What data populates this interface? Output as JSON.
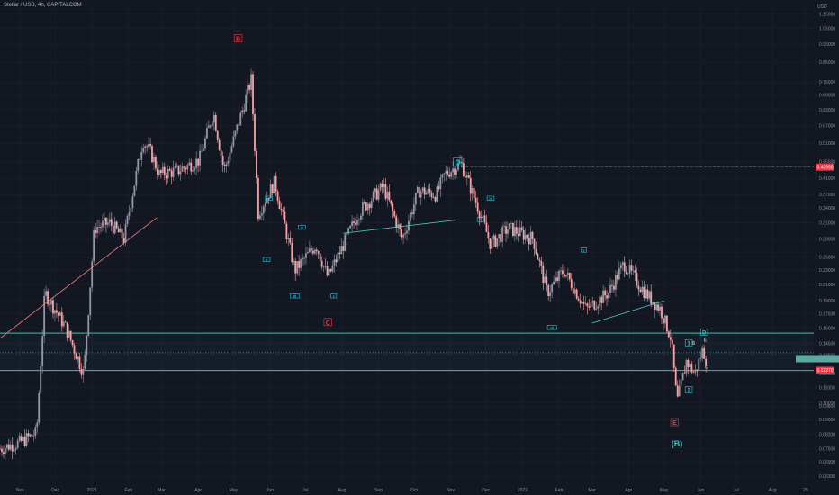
{
  "header": {
    "symbol_line": "Stellar / USD, 4h, CAPITALCOM"
  },
  "price_axis": {
    "currency": "USD",
    "labels": [
      "1.15000",
      "1.05000",
      "0.95000",
      "0.85000",
      "0.75000",
      "0.69000",
      "0.63000",
      "0.57000",
      "0.51000",
      "0.45500",
      "0.41000",
      "0.37000",
      "0.34000",
      "0.31000",
      "0.28000",
      "0.25000",
      "0.23000",
      "0.21000",
      "0.19000",
      "0.17500",
      "0.16000",
      "0.14500",
      "0.13500",
      "0.12000",
      "0.11000",
      "0.10000",
      "0.09800",
      "0.09000",
      "0.08200",
      "0.07500",
      "0.06900",
      "0.06300"
    ],
    "badges": [
      {
        "text": "0.43950",
        "color": "#f23645"
      },
      {
        "text": "0.12270",
        "color": "#f23645"
      },
      {
        "text": "",
        "color": "#5fa6a1"
      }
    ]
  },
  "time_axis": {
    "labels": [
      "Nov",
      "Dec",
      "2021",
      "Feb",
      "Mar",
      "Apr",
      "May",
      "Jun",
      "Jul",
      "Aug",
      "Sep",
      "Oct",
      "Nov",
      "Dec",
      "2022",
      "Feb",
      "Mar",
      "Apr",
      "May",
      "Jun",
      "Jul",
      "Aug",
      "29"
    ]
  },
  "wave_labels": [
    {
      "text": "B",
      "color": "#f23645",
      "boxed": true
    },
    {
      "text": "C",
      "color": "#f23645",
      "boxed": true
    },
    {
      "text": "D",
      "color": "#26c6da",
      "boxed": true
    },
    {
      "text": "E",
      "color": "#f23645",
      "boxed": true
    },
    {
      "text": "(B)",
      "color": "#26c6da",
      "boxed": false
    },
    {
      "text": "1",
      "color": "#26c6da",
      "boxed": true
    },
    {
      "text": "2",
      "color": "#26c6da",
      "boxed": true
    },
    {
      "text": "D",
      "color": "#26c6da",
      "boxed": true
    },
    {
      "text": "C",
      "color": "#b2b5be",
      "boxed": false
    },
    {
      "text": "B",
      "color": "#b2b5be",
      "boxed": false
    },
    {
      "text": "E",
      "color": "#b2b5be",
      "boxed": false
    },
    {
      "text": "ii",
      "color": "#26c6da",
      "boxed": true
    },
    {
      "text": "iv",
      "color": "#26c6da",
      "boxed": true
    },
    {
      "text": "iii",
      "color": "#26c6da",
      "boxed": true
    },
    {
      "text": "v",
      "color": "#26c6da",
      "boxed": true
    },
    {
      "text": "ii",
      "color": "#26c6da",
      "boxed": true
    },
    {
      "text": "i",
      "color": "#26c6da",
      "boxed": true
    },
    {
      "text": "iv",
      "color": "#26c6da",
      "boxed": true
    },
    {
      "text": "iii",
      "color": "#26c6da",
      "boxed": true
    },
    {
      "text": "v",
      "color": "#26c6da",
      "boxed": true
    }
  ],
  "colors": {
    "background": "#131722",
    "grid": "#1e222d",
    "candle_up": "#9598a1",
    "candle_down": "#f4a3a8",
    "zone_line": "#4dd0c4",
    "trendline_red": "#f77c80",
    "dashed_red": "#f23645",
    "accent_teal": "#26c6da"
  },
  "chart_data": {
    "type": "candlestick",
    "title": "Stellar / USD, 4h, CAPITALCOM",
    "xlabel": "",
    "ylabel": "USD",
    "y_scale": "log",
    "ylim": [
      0.06,
      1.2
    ],
    "xlim": [
      "2020-10-15",
      "2022-09-05"
    ],
    "series": [
      {
        "name": "XLM/USD close (approx.)",
        "points": [
          [
            "2020-10-15",
            0.075
          ],
          [
            "2020-11-01",
            0.078
          ],
          [
            "2020-11-15",
            0.083
          ],
          [
            "2020-11-22",
            0.2
          ],
          [
            "2020-12-10",
            0.16
          ],
          [
            "2020-12-25",
            0.12
          ],
          [
            "2021-01-03",
            0.3
          ],
          [
            "2021-01-16",
            0.31
          ],
          [
            "2021-01-28",
            0.28
          ],
          [
            "2021-02-13",
            0.52
          ],
          [
            "2021-02-20",
            0.48
          ],
          [
            "2021-02-27",
            0.42
          ],
          [
            "2021-03-15",
            0.43
          ],
          [
            "2021-04-02",
            0.46
          ],
          [
            "2021-04-14",
            0.62
          ],
          [
            "2021-04-23",
            0.43
          ],
          [
            "2021-05-01",
            0.52
          ],
          [
            "2021-05-16",
            0.76
          ],
          [
            "2021-05-22",
            0.33
          ],
          [
            "2021-06-05",
            0.4
          ],
          [
            "2021-06-22",
            0.23
          ],
          [
            "2021-07-10",
            0.27
          ],
          [
            "2021-07-20",
            0.22
          ],
          [
            "2021-08-15",
            0.33
          ],
          [
            "2021-09-05",
            0.39
          ],
          [
            "2021-09-21",
            0.28
          ],
          [
            "2021-10-05",
            0.38
          ],
          [
            "2021-10-20",
            0.37
          ],
          [
            "2021-10-27",
            0.42
          ],
          [
            "2021-11-10",
            0.45
          ],
          [
            "2021-11-26",
            0.33
          ],
          [
            "2021-12-05",
            0.27
          ],
          [
            "2021-12-20",
            0.3
          ],
          [
            "2022-01-10",
            0.28
          ],
          [
            "2022-01-22",
            0.2
          ],
          [
            "2022-02-05",
            0.23
          ],
          [
            "2022-02-24",
            0.18
          ],
          [
            "2022-03-15",
            0.2
          ],
          [
            "2022-03-28",
            0.24
          ],
          [
            "2022-04-15",
            0.2
          ],
          [
            "2022-04-28",
            0.18
          ],
          [
            "2022-05-07",
            0.15
          ],
          [
            "2022-05-12",
            0.1
          ],
          [
            "2022-05-20",
            0.13
          ],
          [
            "2022-05-27",
            0.12
          ],
          [
            "2022-06-03",
            0.14
          ],
          [
            "2022-06-06",
            0.13
          ]
        ]
      }
    ],
    "horizontal_levels": [
      {
        "value": 0.155,
        "style": "solid",
        "color": "#4dd0c4"
      },
      {
        "value": 0.1225,
        "style": "solid",
        "color": "#4dd0c4"
      },
      {
        "value": 0.137,
        "style": "dotted",
        "color": "#4dd0c4"
      },
      {
        "value": 0.4395,
        "style": "dashed",
        "color": "#f23645"
      },
      {
        "value": 0.1227,
        "style": "dashed",
        "color": "#f23645"
      }
    ]
  }
}
